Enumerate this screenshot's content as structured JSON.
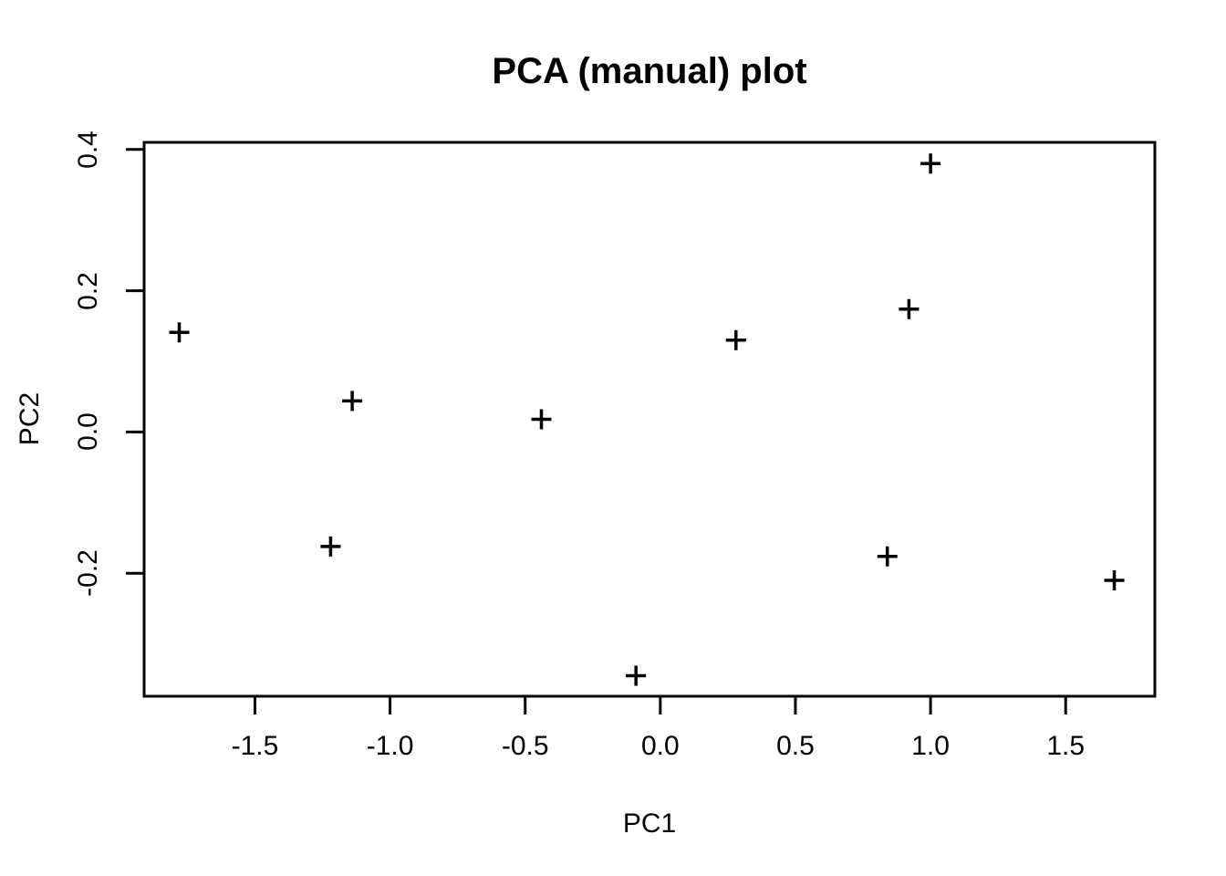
{
  "page": {
    "background_color": "#ffffff",
    "foreground_color": "#000000"
  },
  "chart_data": {
    "type": "scatter",
    "title": "PCA (manual) plot",
    "xlabel": "PC1",
    "ylabel": "PC2",
    "marker": "plus",
    "marker_color": "#000000",
    "grid": false,
    "legend": null,
    "xlim": [
      -1.91,
      1.83
    ],
    "ylim": [
      -0.374,
      0.41
    ],
    "xtick_values": [
      -1.5,
      -1.0,
      -0.5,
      0.0,
      0.5,
      1.0,
      1.5
    ],
    "xtick_labels": [
      "-1.5",
      "-1.0",
      "-0.5",
      "0.0",
      "0.5",
      "1.0",
      "1.5"
    ],
    "ytick_values": [
      -0.2,
      0.0,
      0.2,
      0.4
    ],
    "ytick_labels": [
      "-0.2",
      "0.0",
      "0.2",
      "0.4"
    ],
    "points": [
      {
        "x": -1.78,
        "y": 0.141
      },
      {
        "x": -1.22,
        "y": -0.162
      },
      {
        "x": -1.14,
        "y": 0.044
      },
      {
        "x": -0.44,
        "y": 0.018
      },
      {
        "x": -0.09,
        "y": -0.345
      },
      {
        "x": 0.28,
        "y": 0.13
      },
      {
        "x": 0.84,
        "y": -0.176
      },
      {
        "x": 0.92,
        "y": 0.174
      },
      {
        "x": 1.0,
        "y": 0.38
      },
      {
        "x": 1.68,
        "y": -0.21
      }
    ]
  }
}
